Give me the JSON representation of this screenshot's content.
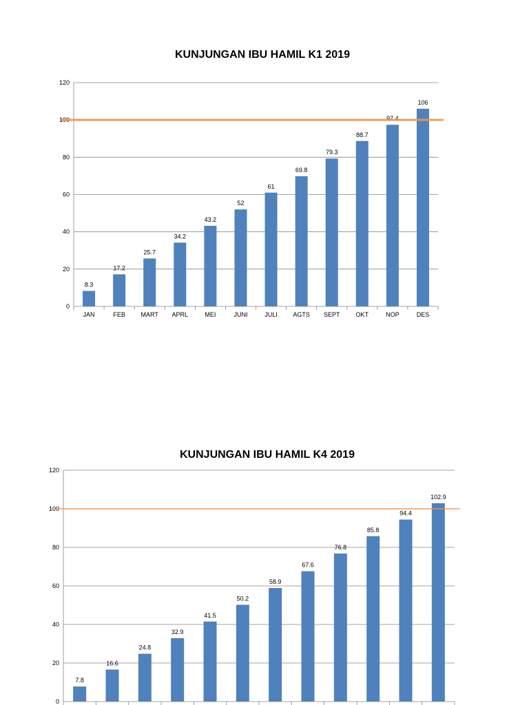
{
  "chart_data": [
    {
      "type": "bar",
      "title": "KUNJUNGAN IBU HAMIL K1 2019",
      "categories": [
        "JAN",
        "FEB",
        "MART",
        "APRL",
        "MEI",
        "JUNI",
        "JULI",
        "AGTS",
        "SEPT",
        "OKT",
        "NOP",
        "DES"
      ],
      "values": [
        8.3,
        17.2,
        25.7,
        34.2,
        43.2,
        52,
        61,
        69.8,
        79.3,
        88.7,
        97.4,
        106
      ],
      "data_labels": [
        "8.3",
        "17.2",
        "25.7",
        "34.2",
        "43.2",
        "52",
        "61",
        "69.8",
        "79.3",
        "88.7",
        "97.4",
        "106"
      ],
      "yticks": [
        0,
        20,
        40,
        60,
        80,
        100,
        120
      ],
      "ylim": [
        0,
        120
      ],
      "target_line": 100,
      "grid": true,
      "colors": {
        "bar": "#4F81BD",
        "target": "#F79646",
        "grid": "#868686"
      }
    },
    {
      "type": "bar",
      "title": "KUNJUNGAN IBU HAMIL K4 2019",
      "categories": [
        "",
        "",
        "",
        "",
        "",
        "",
        "",
        "",
        "",
        "",
        "",
        ""
      ],
      "values": [
        7.8,
        16.6,
        24.8,
        32.9,
        41.5,
        50.2,
        58.9,
        67.6,
        76.8,
        85.8,
        94.4,
        102.9
      ],
      "data_labels": [
        "7.8",
        "16.6",
        "24.8",
        "32.9",
        "41.5",
        "50.2",
        "58.9",
        "67.6",
        "76.8",
        "85.8",
        "94.4",
        "102.9"
      ],
      "yticks": [
        0,
        20,
        40,
        60,
        80,
        100,
        120
      ],
      "ylim": [
        0,
        120
      ],
      "target_line": 100,
      "grid": true,
      "colors": {
        "bar": "#4F81BD",
        "target": "#F79646",
        "grid": "#868686"
      }
    }
  ]
}
